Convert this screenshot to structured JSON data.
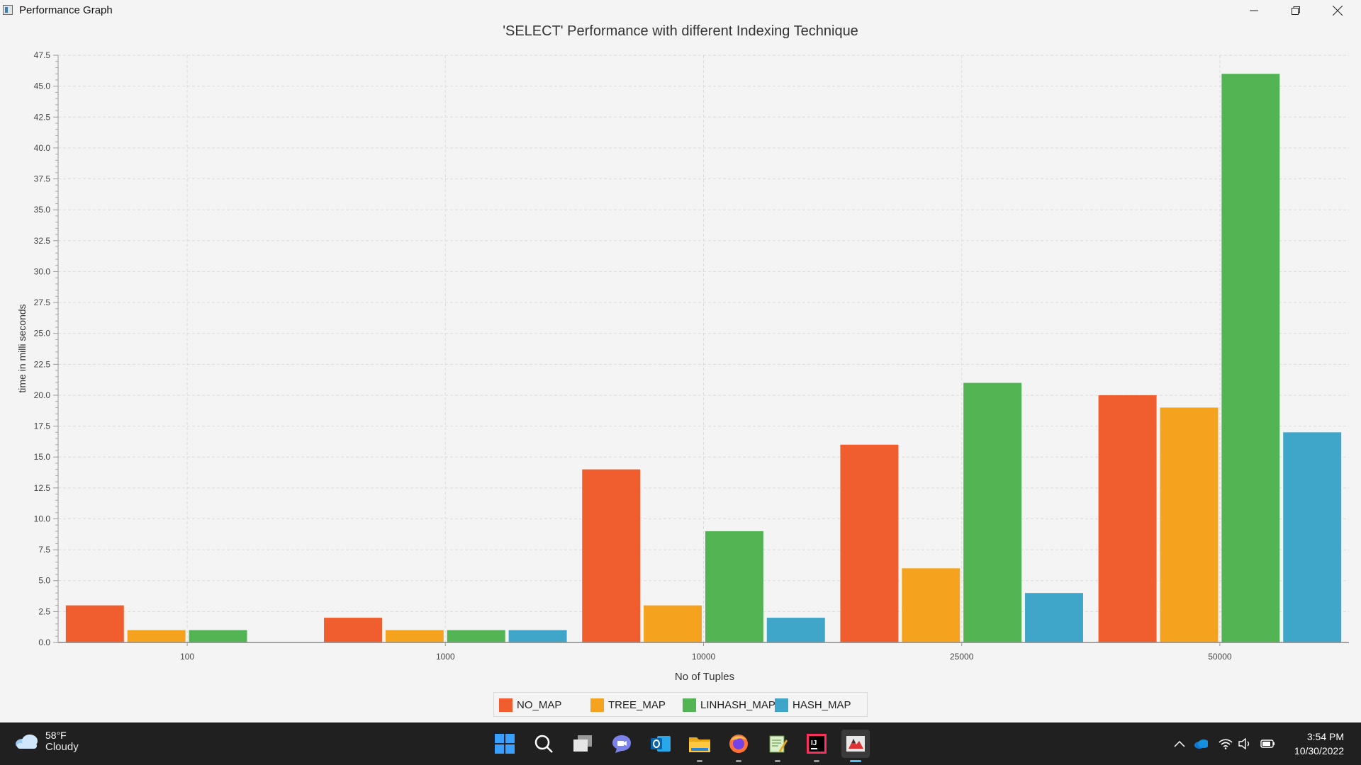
{
  "window": {
    "title": "Performance Graph"
  },
  "chart_data": {
    "type": "bar",
    "title": "'SELECT' Performance with different Indexing Technique",
    "xlabel": "No of Tuples",
    "ylabel": "time in milli seconds",
    "categories": [
      "100",
      "1000",
      "10000",
      "25000",
      "50000"
    ],
    "series": [
      {
        "name": "NO_MAP",
        "color": "#f05d2e",
        "values": [
          3,
          2,
          14,
          16,
          20
        ]
      },
      {
        "name": "TREE_MAP",
        "color": "#f5a31e",
        "values": [
          1,
          1,
          3,
          6,
          19
        ]
      },
      {
        "name": "LINHASH_MAP",
        "color": "#53b453",
        "values": [
          1,
          1,
          9,
          21,
          46
        ]
      },
      {
        "name": "HASH_MAP",
        "color": "#3fa6c9",
        "values": [
          0,
          1,
          2,
          4,
          17
        ]
      }
    ],
    "ylim": [
      0,
      47.5
    ],
    "ytick_step": 2.5,
    "yticks": [
      "0.0",
      "2.5",
      "5.0",
      "7.5",
      "10.0",
      "12.5",
      "15.0",
      "17.5",
      "20.0",
      "22.5",
      "25.0",
      "27.5",
      "30.0",
      "32.5",
      "35.0",
      "37.5",
      "40.0",
      "42.5",
      "45.0",
      "47.5"
    ],
    "grid": true,
    "legend_position": "bottom-center"
  },
  "taskbar": {
    "weather": {
      "temp": "58°F",
      "condition": "Cloudy"
    },
    "apps": [
      "start-icon",
      "search-icon",
      "task-view-icon",
      "chat-icon",
      "outlook-icon",
      "file-explorer-icon",
      "firefox-icon",
      "notepad-icon",
      "intellij-icon",
      "java-app-icon"
    ],
    "clock": {
      "time": "3:54 PM",
      "date": "10/30/2022"
    }
  }
}
